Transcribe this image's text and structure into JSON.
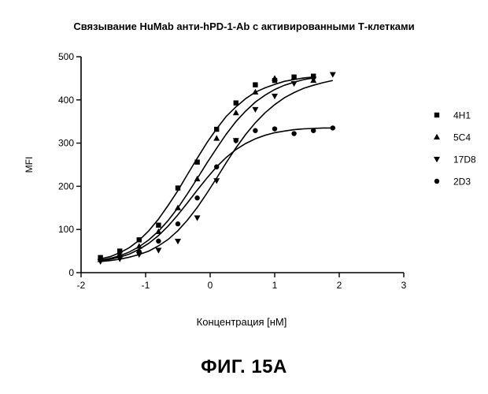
{
  "figure_label": "ФИГ. 15А",
  "chart_data": {
    "type": "scatter",
    "title": "Связывание HuMab анти-hPD-1-Ab с активированными Т-клетками",
    "xlabel": "Концентрация [нМ]",
    "ylabel": "MFI",
    "xlim": [
      -2,
      3
    ],
    "ylim": [
      0,
      500
    ],
    "xticks": [
      -2,
      -1,
      0,
      1,
      2,
      3
    ],
    "yticks": [
      0,
      100,
      200,
      300,
      400,
      500
    ],
    "xtick_labels": [
      "-2",
      "-1",
      "0",
      "1",
      "2",
      "3"
    ],
    "ytick_labels": [
      "0",
      "100",
      "200",
      "300",
      "400",
      "500"
    ],
    "legend_position": "right",
    "grid": false,
    "series": [
      {
        "name": "4H1",
        "marker": "square",
        "color": "#000000",
        "x": [
          -1.7,
          -1.4,
          -1.1,
          -0.8,
          -0.5,
          -0.2,
          0.1,
          0.4,
          0.7,
          1.0,
          1.3,
          1.6
        ],
        "y": [
          35,
          50,
          76,
          110,
          196,
          256,
          332,
          393,
          435,
          445,
          453,
          455
        ],
        "fit_x": [
          -1.7,
          -1.55,
          -1.4,
          -1.25,
          -1.1,
          -0.95,
          -0.8,
          -0.65,
          -0.5,
          -0.35,
          -0.2,
          -0.05,
          0.1,
          0.25,
          0.4,
          0.55,
          0.7,
          0.85,
          1.0,
          1.15,
          1.3,
          1.45,
          1.6
        ],
        "fit_y": [
          32,
          37,
          46,
          58,
          75,
          97,
          124,
          156,
          190,
          228,
          265,
          301,
          333,
          362,
          384,
          403,
          418,
          428,
          436,
          443,
          447,
          451,
          453
        ]
      },
      {
        "name": "5С4",
        "marker": "triangle-up",
        "color": "#000000",
        "x": [
          -1.7,
          -1.4,
          -1.1,
          -0.8,
          -0.5,
          -0.2,
          0.1,
          0.4,
          0.7,
          1.0,
          1.3,
          1.6
        ],
        "y": [
          30,
          43,
          61,
          95,
          150,
          217,
          311,
          370,
          418,
          450,
          452,
          445
        ],
        "fit_x": [
          -1.7,
          -1.55,
          -1.4,
          -1.25,
          -1.1,
          -0.95,
          -0.8,
          -0.65,
          -0.5,
          -0.35,
          -0.2,
          -0.05,
          0.1,
          0.25,
          0.4,
          0.55,
          0.7,
          0.85,
          1.0,
          1.15,
          1.3,
          1.45,
          1.6
        ],
        "fit_y": [
          29,
          33,
          39,
          48,
          60,
          76,
          96,
          121,
          150,
          183,
          218,
          254,
          288,
          321,
          350,
          374,
          395,
          411,
          424,
          434,
          441,
          447,
          451
        ]
      },
      {
        "name": "17D8",
        "marker": "triangle-down",
        "color": "#000000",
        "x": [
          -1.7,
          -1.4,
          -1.1,
          -0.8,
          -0.5,
          -0.2,
          0.1,
          0.4,
          0.7,
          1.0,
          1.3,
          1.6,
          1.9
        ],
        "y": [
          26,
          32,
          42,
          52,
          73,
          127,
          213,
          306,
          378,
          409,
          438,
          448,
          459
        ],
        "fit_x": [
          -1.7,
          -1.55,
          -1.4,
          -1.25,
          -1.1,
          -0.95,
          -0.8,
          -0.65,
          -0.5,
          -0.35,
          -0.2,
          -0.05,
          0.1,
          0.25,
          0.4,
          0.55,
          0.7,
          0.85,
          1.0,
          1.15,
          1.3,
          1.45,
          1.6,
          1.75,
          1.9
        ],
        "fit_y": [
          26,
          28,
          31,
          36,
          42,
          50,
          62,
          77,
          97,
          122,
          151,
          184,
          219,
          255,
          289,
          320,
          347,
          370,
          389,
          405,
          417,
          427,
          434,
          440,
          445
        ]
      },
      {
        "name": "2D3",
        "marker": "circle",
        "color": "#000000",
        "x": [
          -1.7,
          -1.4,
          -1.1,
          -0.8,
          -0.5,
          -0.2,
          0.1,
          0.4,
          0.7,
          1.0,
          1.3,
          1.6,
          1.9
        ],
        "y": [
          29,
          37,
          48,
          73,
          113,
          173,
          245,
          306,
          329,
          333,
          322,
          329,
          335
        ],
        "fit_x": [
          -1.7,
          -1.55,
          -1.4,
          -1.25,
          -1.1,
          -0.95,
          -0.8,
          -0.65,
          -0.5,
          -0.35,
          -0.2,
          -0.05,
          0.1,
          0.25,
          0.4,
          0.55,
          0.7,
          0.85,
          1.0,
          1.15,
          1.3,
          1.45,
          1.6,
          1.75,
          1.9
        ],
        "fit_y": [
          28,
          31,
          36,
          43,
          54,
          68,
          86,
          108,
          134,
          162,
          191,
          219,
          245,
          267,
          285,
          299,
          310,
          318,
          324,
          328,
          331,
          333,
          334,
          335,
          335
        ]
      }
    ]
  }
}
